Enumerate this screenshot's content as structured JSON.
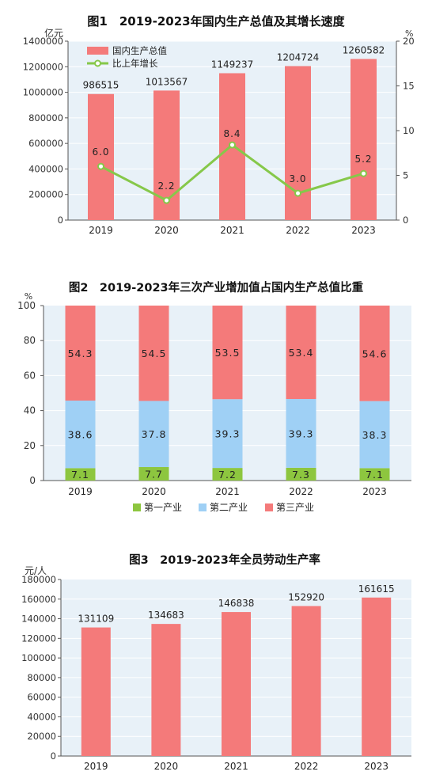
{
  "charts": {
    "fig1": {
      "title": "图1　2019-2023年国内生产总值及其增长速度",
      "left_unit": "亿元",
      "right_unit": "%",
      "colors": {
        "bar": "#f47a7a",
        "line": "#86c84a",
        "bg": "#e8f1f8"
      },
      "legend": [
        "国内生产总值",
        "比上年增长"
      ],
      "yticks_left": [
        "0",
        "200000",
        "400000",
        "600000",
        "800000",
        "1000000",
        "1200000",
        "1400000"
      ],
      "yticks_right": [
        "0",
        "5",
        "10",
        "15",
        "20"
      ],
      "categories": [
        "2019",
        "2020",
        "2021",
        "2022",
        "2023"
      ],
      "bar_labels": [
        "986515",
        "1013567",
        "1149237",
        "1204724",
        "1260582"
      ],
      "line_labels": [
        "6.0",
        "2.2",
        "8.4",
        "3.0",
        "5.2"
      ]
    },
    "fig2": {
      "title": "图2　2019-2023年三次产业增加值占国内生产总值比重",
      "unit": "%",
      "colors": {
        "primary": "#8dc63f",
        "secondary": "#9fd0f5",
        "tertiary": "#f47a7a",
        "bg": "#e8f1f8"
      },
      "legend": [
        "第一产业",
        "第二产业",
        "第三产业"
      ],
      "yticks": [
        "0",
        "20",
        "40",
        "60",
        "80",
        "100"
      ],
      "categories": [
        "2019",
        "2020",
        "2021",
        "2022",
        "2023"
      ],
      "primary_labels": [
        "7.1",
        "7.7",
        "7.2",
        "7.3",
        "7.1"
      ],
      "secondary_labels": [
        "38.6",
        "37.8",
        "39.3",
        "39.3",
        "38.3"
      ],
      "tertiary_labels": [
        "54.3",
        "54.5",
        "53.5",
        "53.4",
        "54.6"
      ]
    },
    "fig3": {
      "title": "图3　2019-2023年全员劳动生产率",
      "unit": "元/人",
      "colors": {
        "bar": "#f47a7a",
        "bg": "#e8f1f8"
      },
      "yticks": [
        "0",
        "20000",
        "40000",
        "60000",
        "80000",
        "100000",
        "120000",
        "140000",
        "160000",
        "180000"
      ],
      "categories": [
        "2019",
        "2020",
        "2021",
        "2022",
        "2023"
      ],
      "bar_labels": [
        "131109",
        "134683",
        "146838",
        "152920",
        "161615"
      ]
    }
  },
  "chart_data": [
    {
      "type": "bar",
      "title": "图1　2019-2023年国内生产总值及其增长速度",
      "categories": [
        "2019",
        "2020",
        "2021",
        "2022",
        "2023"
      ],
      "series": [
        {
          "name": "国内生产总值",
          "type": "bar",
          "axis": "left",
          "values": [
            986515,
            1013567,
            1149237,
            1204724,
            1260582
          ]
        },
        {
          "name": "比上年增长",
          "type": "line",
          "axis": "right",
          "values": [
            6.0,
            2.2,
            8.4,
            3.0,
            5.2
          ]
        }
      ],
      "ylabel": "亿元",
      "ylim": [
        0,
        1400000
      ],
      "y2label": "%",
      "y2lim": [
        0,
        20
      ],
      "legend": "top-left",
      "grid": true
    },
    {
      "type": "bar",
      "stacked": true,
      "title": "图2　2019-2023年三次产业增加值占国内生产总值比重",
      "categories": [
        "2019",
        "2020",
        "2021",
        "2022",
        "2023"
      ],
      "series": [
        {
          "name": "第一产业",
          "values": [
            7.1,
            7.7,
            7.2,
            7.3,
            7.1
          ]
        },
        {
          "name": "第二产业",
          "values": [
            38.6,
            37.8,
            39.3,
            39.3,
            38.3
          ]
        },
        {
          "name": "第三产业",
          "values": [
            54.3,
            54.5,
            53.5,
            53.4,
            54.6
          ]
        }
      ],
      "ylabel": "%",
      "ylim": [
        0,
        100
      ],
      "legend": "bottom",
      "grid": true
    },
    {
      "type": "bar",
      "title": "图3　2019-2023年全员劳动生产率",
      "categories": [
        "2019",
        "2020",
        "2021",
        "2022",
        "2023"
      ],
      "values": [
        131109,
        134683,
        146838,
        152920,
        161615
      ],
      "ylabel": "元/人",
      "ylim": [
        0,
        180000
      ],
      "grid": true
    }
  ]
}
